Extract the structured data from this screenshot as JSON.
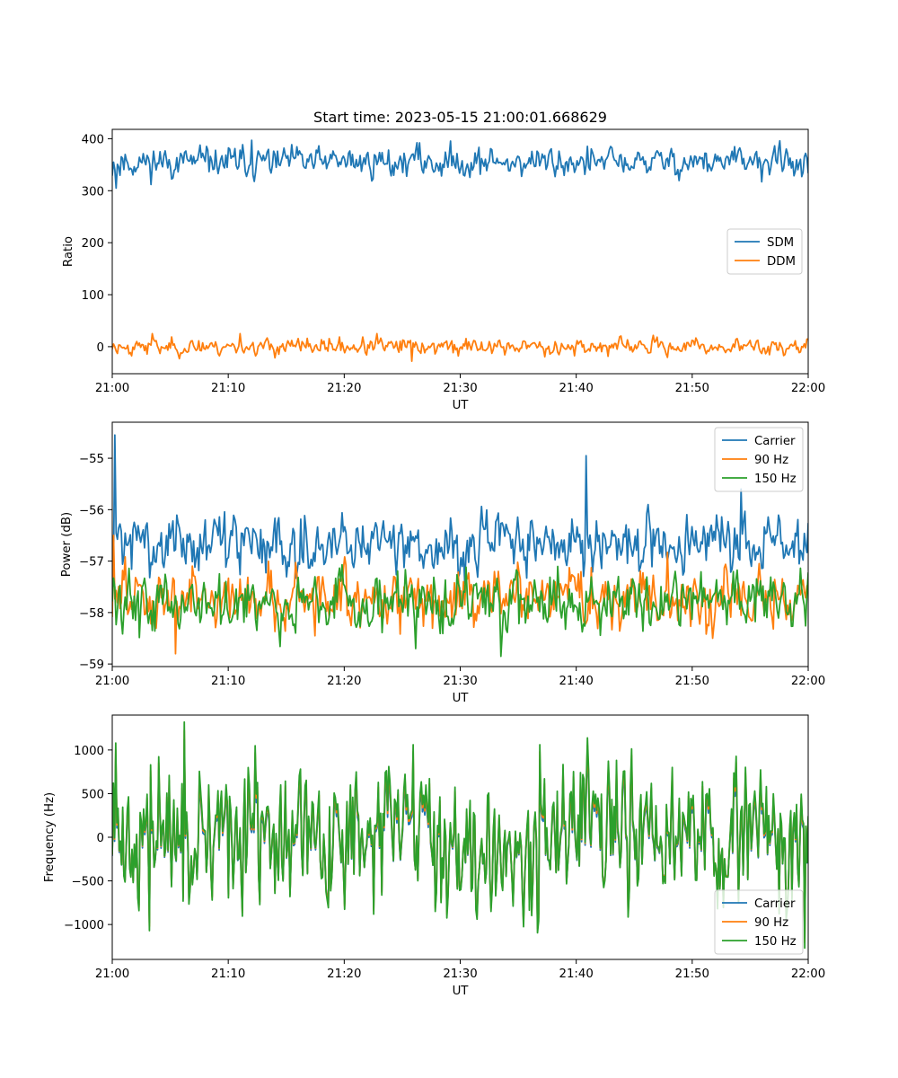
{
  "figure_title": "Start time: 2023-05-15 21:00:01.668629",
  "colors": {
    "c0": "#1f77b4",
    "c1": "#ff7f0e",
    "c2": "#2ca02c",
    "legend_border": "#cccccc"
  },
  "chart_data": [
    {
      "type": "line",
      "xlabel": "UT",
      "ylabel": "Ratio",
      "xlim": [
        0,
        60
      ],
      "ylim": [
        -52,
        418
      ],
      "x_tick_labels": [
        "21:00",
        "21:10",
        "21:20",
        "21:30",
        "21:40",
        "21:50",
        "22:00"
      ],
      "y_ticks": [
        0,
        100,
        200,
        300,
        400
      ],
      "y_tick_labels": [
        "0",
        "100",
        "200",
        "300",
        "400"
      ],
      "legend": {
        "loc": "center-right",
        "entries": [
          "SDM",
          "DDM"
        ]
      },
      "series": [
        {
          "name": "SDM",
          "color": "#1f77b4",
          "n": 540,
          "seed": 11,
          "base": 355,
          "noise": 15,
          "spikes": [
            [
              0.3,
              305
            ],
            [
              12,
              397
            ],
            [
              26.5,
              392
            ],
            [
              57.5,
              396
            ]
          ]
        },
        {
          "name": "DDM",
          "color": "#ff7f0e",
          "n": 540,
          "seed": 23,
          "base": 0,
          "noise": 8,
          "spikes": [
            [
              3.5,
              25
            ],
            [
              11,
              25
            ],
            [
              22.8,
              25
            ],
            [
              25.8,
              -28
            ]
          ]
        }
      ]
    },
    {
      "type": "line",
      "xlabel": "UT",
      "ylabel": "Power (dB)",
      "xlim": [
        0,
        60
      ],
      "ylim": [
        -59.05,
        -54.3
      ],
      "x_tick_labels": [
        "21:00",
        "21:10",
        "21:20",
        "21:30",
        "21:40",
        "21:50",
        "22:00"
      ],
      "y_ticks": [
        -59,
        -58,
        -57,
        -56,
        -55
      ],
      "y_tick_labels": [
        "−59",
        "−58",
        "−57",
        "−56",
        "−55"
      ],
      "legend": {
        "loc": "upper-right",
        "entries": [
          "Carrier",
          "90 Hz",
          "150 Hz"
        ]
      },
      "series": [
        {
          "name": "Carrier",
          "color": "#1f77b4",
          "n": 540,
          "seed": 31,
          "base": -56.65,
          "noise": 0.3,
          "spikes": [
            [
              0.25,
              -54.55
            ],
            [
              40.9,
              -54.95
            ],
            [
              54.2,
              -55.6
            ]
          ]
        },
        {
          "name": "90 Hz",
          "color": "#ff7f0e",
          "n": 540,
          "seed": 47,
          "base": -57.7,
          "noise": 0.3,
          "spikes": [
            [
              5.4,
              -58.8
            ],
            [
              0.1,
              -56.5
            ]
          ]
        },
        {
          "name": "150 Hz",
          "color": "#2ca02c",
          "n": 540,
          "seed": 59,
          "base": -57.75,
          "noise": 0.3,
          "spikes": [
            [
              33.5,
              -58.85
            ],
            [
              26.2,
              -58.7
            ]
          ]
        }
      ]
    },
    {
      "type": "line",
      "xlabel": "UT",
      "ylabel": "Frequency (Hz)",
      "xlim": [
        0,
        60
      ],
      "ylim": [
        -1400,
        1400
      ],
      "x_tick_labels": [
        "21:00",
        "21:10",
        "21:20",
        "21:30",
        "21:40",
        "21:50",
        "22:00"
      ],
      "y_ticks": [
        -1000,
        -500,
        0,
        500,
        1000
      ],
      "y_tick_labels": [
        "−1000",
        "−500",
        "0",
        "500",
        "1000"
      ],
      "legend": {
        "loc": "lower-right",
        "entries": [
          "Carrier",
          "90 Hz",
          "150 Hz"
        ]
      },
      "shared_base": {
        "n": 600,
        "seed": 71,
        "mean": 0,
        "amp": 420,
        "spikes": [
          [
            6.2,
            1320
          ],
          [
            0.3,
            1080
          ],
          [
            3.2,
            -1070
          ],
          [
            59.7,
            -1270
          ],
          [
            25.9,
            1060
          ],
          [
            36.9,
            1060
          ]
        ]
      },
      "series": [
        {
          "name": "Carrier",
          "color": "#1f77b4",
          "scale": 0.88,
          "offset": -40
        },
        {
          "name": "90 Hz",
          "color": "#ff7f0e",
          "scale": 0.94,
          "offset": -15
        },
        {
          "name": "150 Hz",
          "color": "#2ca02c",
          "scale": 1.0,
          "offset": 0
        }
      ]
    }
  ]
}
